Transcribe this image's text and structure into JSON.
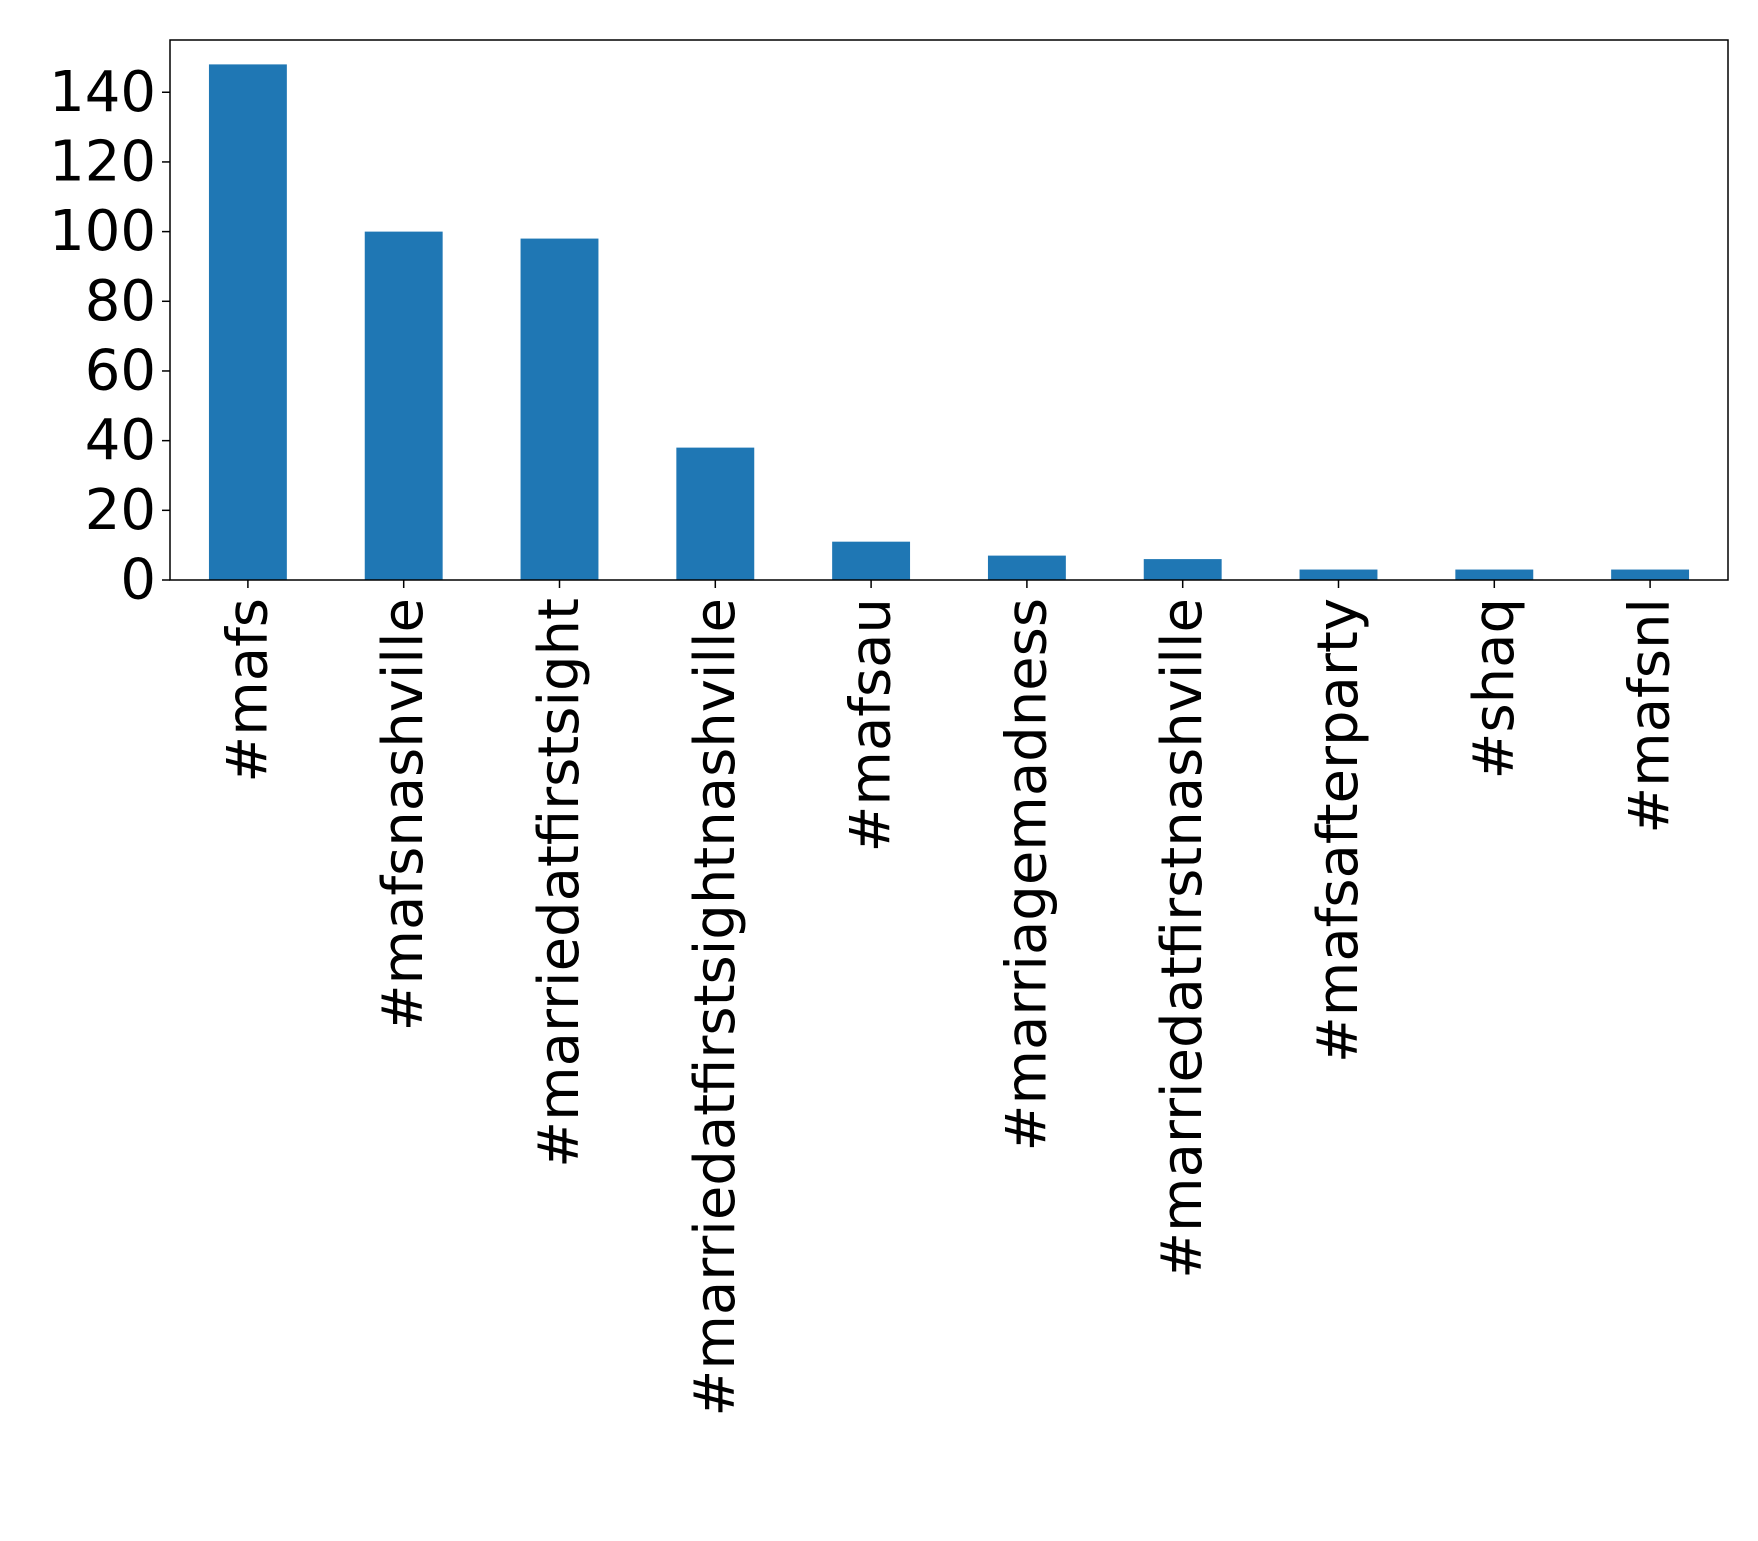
{
  "chart_data": {
    "type": "bar",
    "title": "",
    "xlabel": "",
    "ylabel": "",
    "categories": [
      "#mafs",
      "#mafsnashville",
      "#marriedatfirstsight",
      "#marriedatfirstsightnashville",
      "#mafsau",
      "#marriagemadness",
      "#marriedatfirstnashville",
      "#mafsafterparty",
      "#shaq",
      "#mafsnl"
    ],
    "values": [
      148,
      100,
      98,
      38,
      11,
      7,
      6,
      3,
      3,
      3
    ],
    "ylim": [
      0,
      155
    ],
    "yticks": [
      0,
      20,
      40,
      60,
      80,
      100,
      120,
      140
    ],
    "bar_color": "#1f77b4",
    "grid": false,
    "legend": "none",
    "x_tick_rotation": "vertical"
  }
}
